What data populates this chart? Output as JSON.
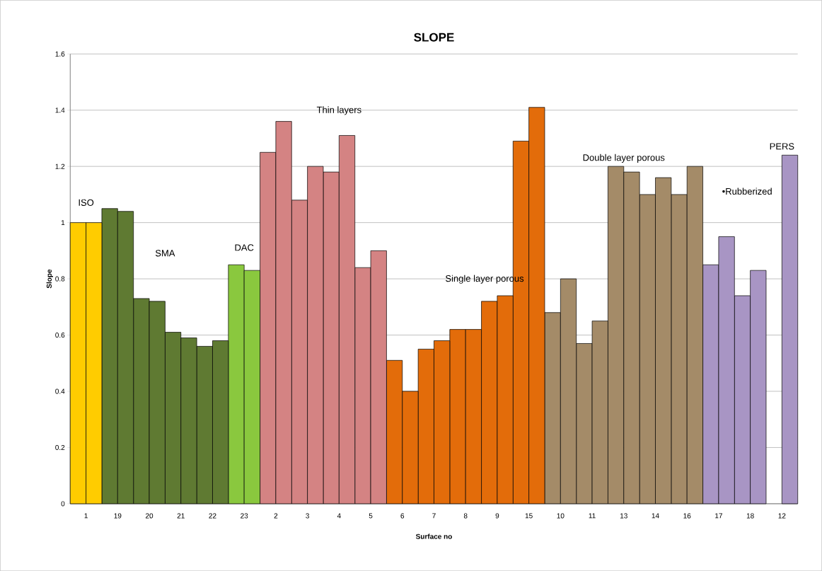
{
  "chart_data": {
    "type": "bar",
    "title": "SLOPE",
    "xlabel": "Surface no",
    "ylabel": "Slope",
    "categories": [
      "1",
      "19",
      "20",
      "21",
      "22",
      "23",
      "2",
      "3",
      "4",
      "5",
      "6",
      "7",
      "8",
      "9",
      "15",
      "10",
      "11",
      "13",
      "14",
      "16",
      "17",
      "18",
      "12"
    ],
    "series": [
      {
        "colors": [
          "#ffcc00",
          "#5f7a32",
          "#5f7a32",
          "#5f7a32",
          "#5f7a32",
          "#8ac83e",
          "#d48383",
          "#d48383",
          "#d48383",
          "#d48383",
          "#e36c0a",
          "#e36c0a",
          "#e36c0a",
          "#e36c0a",
          "#e36c0a",
          "#a48b68",
          "#a48b68",
          "#a48b68",
          "#a48b68",
          "#a48b68",
          "#a895c4",
          "#a895c4",
          "#a895c4"
        ],
        "values": [
          1.0,
          1.05,
          0.73,
          0.61,
          0.56,
          0.85,
          1.25,
          1.08,
          1.18,
          0.84,
          0.51,
          0.55,
          0.62,
          0.72,
          1.29,
          0.68,
          0.57,
          1.2,
          1.1,
          1.1,
          0.85,
          0.74,
          null
        ]
      },
      {
        "colors": [
          "#ffcc00",
          "#5f7a32",
          "#5f7a32",
          "#5f7a32",
          "#5f7a32",
          "#8ac83e",
          "#d48383",
          "#d48383",
          "#d48383",
          "#d48383",
          "#e36c0a",
          "#e36c0a",
          "#e36c0a",
          "#e36c0a",
          "#e36c0a",
          "#a48b68",
          "#a48b68",
          "#a48b68",
          "#a48b68",
          "#a48b68",
          "#a895c4",
          "#a895c4",
          "#a895c4"
        ],
        "values": [
          1.0,
          1.04,
          0.72,
          0.59,
          0.58,
          0.83,
          1.36,
          1.2,
          1.31,
          0.9,
          0.4,
          0.58,
          0.62,
          0.74,
          1.41,
          0.8,
          0.65,
          1.18,
          1.16,
          1.2,
          0.95,
          0.83,
          1.24
        ]
      }
    ],
    "ylim": [
      0,
      1.6
    ],
    "yticks": [
      0,
      0.2,
      0.4,
      0.6,
      0.8,
      1,
      1.2,
      1.4,
      1.6
    ],
    "grid": "y",
    "annotations": [
      "ISO",
      "SMA",
      "DAC",
      "Thin layers",
      "Single layer porous",
      "Double layer porous",
      "•Rubberized",
      "PERS"
    ]
  }
}
